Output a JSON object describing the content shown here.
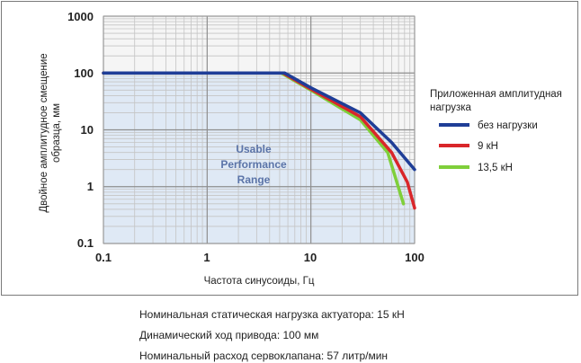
{
  "chart_data": {
    "type": "line",
    "title": "",
    "xlabel": "Частота синусоиды, Гц",
    "ylabel_lines": [
      "Двойное амплитудное смещение",
      "образца, мм"
    ],
    "x_scale": "log",
    "y_scale": "log",
    "xlim": [
      0.1,
      100
    ],
    "ylim": [
      0.1,
      1000
    ],
    "x_ticks": [
      "0.1",
      "1",
      "10",
      "100"
    ],
    "y_ticks": [
      "0.1",
      "1",
      "10",
      "100",
      "1000"
    ],
    "grid": true,
    "legend": {
      "title_lines": [
        "Приложенная амплитудная",
        "нагрузка"
      ],
      "placement": "right"
    },
    "annotation_lines": [
      "Usable",
      "Performance",
      "Range"
    ],
    "series": [
      {
        "name": "без нагрузки",
        "color": "#1f3e97",
        "x": [
          0.1,
          5.6,
          10,
          30,
          60,
          100
        ],
        "y": [
          100,
          100,
          55,
          20,
          6,
          2
        ]
      },
      {
        "name": "9 кН",
        "color": "#d9262a",
        "x": [
          0.1,
          5.4,
          10,
          30,
          60,
          85,
          100
        ],
        "y": [
          100,
          100,
          52,
          17,
          4,
          1.2,
          0.42
        ]
      },
      {
        "name": "13,5 кН",
        "color": "#7fcf3a",
        "x": [
          0.1,
          5.2,
          10,
          30,
          55,
          78
        ],
        "y": [
          100,
          100,
          50,
          15,
          4,
          0.5
        ]
      }
    ]
  },
  "notes": {
    "static_load": "Номинальная статическая нагрузка актуатора: 15 кН",
    "stroke": "Динамический ход привода: 100 мм",
    "flow": "Номинальный расход сервоклапана: 57 литр/мин"
  }
}
